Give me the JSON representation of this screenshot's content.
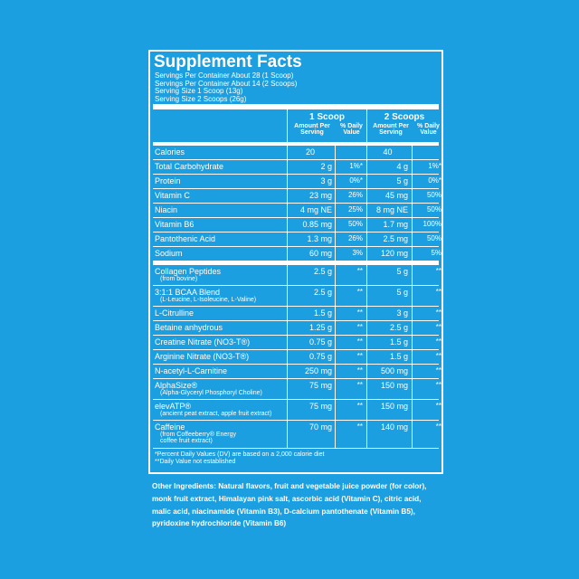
{
  "title": "Supplement Facts",
  "servings": [
    "Servings Per Container About 28 (1 Scoop)",
    "Servings Per Container About 14 (2 Scoops)",
    "Serving Size 1 Scoop (13g)",
    "Serving Size 2 Scoops (26g)"
  ],
  "header": {
    "col1": "1 Scoop",
    "col2": "2 Scoops",
    "amount": "Amount Per Serving",
    "dv": "% Daily Value"
  },
  "section1": [
    {
      "name": "Calories",
      "a1": "20",
      "d1": "",
      "a2": "40",
      "d2": ""
    },
    {
      "name": "Total Carbohydrate",
      "a1": "2 g",
      "d1": "1%*",
      "a2": "4 g",
      "d2": "1%*"
    },
    {
      "name": "Protein",
      "a1": "3 g",
      "d1": "0%*",
      "a2": "5 g",
      "d2": "0%*"
    },
    {
      "name": "Vitamin C",
      "a1": "23 mg",
      "d1": "26%",
      "a2": "45 mg",
      "d2": "50%"
    },
    {
      "name": "Niacin",
      "a1": "4 mg NE",
      "d1": "25%",
      "a2": "8 mg NE",
      "d2": "50%"
    },
    {
      "name": "Vitamin B6",
      "a1": "0.85 mg",
      "d1": "50%",
      "a2": "1.7 mg",
      "d2": "100%"
    },
    {
      "name": "Pantothenic Acid",
      "a1": "1.3 mg",
      "d1": "26%",
      "a2": "2.5 mg",
      "d2": "50%"
    },
    {
      "name": "Sodium",
      "a1": "60 mg",
      "d1": "3%",
      "a2": "120 mg",
      "d2": "5%"
    }
  ],
  "section2": [
    {
      "name": "Collagen Peptides",
      "note": "(from bovine)",
      "a1": "2.5 g",
      "d1": "**",
      "a2": "5 g",
      "d2": "**"
    },
    {
      "name": "3:1:1 BCAA Blend",
      "note": "(L-Leucine, L-Isoleucine, L-Valine)",
      "a1": "2.5 g",
      "d1": "**",
      "a2": "5 g",
      "d2": "**"
    },
    {
      "name": "L-Citrulline",
      "note": "",
      "a1": "1.5 g",
      "d1": "**",
      "a2": "3 g",
      "d2": "**"
    },
    {
      "name": "Betaine anhydrous",
      "note": "",
      "a1": "1.25 g",
      "d1": "**",
      "a2": "2.5 g",
      "d2": "**"
    },
    {
      "name": "Creatine Nitrate (NO3-T®)",
      "note": "",
      "a1": "0.75 g",
      "d1": "**",
      "a2": "1.5 g",
      "d2": "**"
    },
    {
      "name": "Arginine Nitrate (NO3-T®)",
      "note": "",
      "a1": "0.75 g",
      "d1": "**",
      "a2": "1.5 g",
      "d2": "**"
    },
    {
      "name": "N-acetyl-L-Carnitine",
      "note": "",
      "a1": "250 mg",
      "d1": "**",
      "a2": "500 mg",
      "d2": "**"
    },
    {
      "name": "AlphaSize®",
      "note": "(Alpha-Glyceryl Phosphoryl Choline)",
      "a1": "75 mg",
      "d1": "**",
      "a2": "150 mg",
      "d2": "**"
    },
    {
      "name": "elevATP®",
      "note": "(ancient peat extract, apple fruit extract)",
      "a1": "75 mg",
      "d1": "**",
      "a2": "150 mg",
      "d2": "**"
    },
    {
      "name": "Caffeine",
      "note": "(from Coffeeberry® Energy\ncoffee fruit extract)",
      "a1": "70 mg",
      "d1": "**",
      "a2": "140 mg",
      "d2": "**"
    }
  ],
  "footnotes": [
    "*Percent Daily Values (DV) are based on a 2,000 calorie diet",
    "**Daily Value not established"
  ],
  "other_ingredients": "Other Ingredients: Natural flavors, fruit and vegetable juice powder (for color), monk fruit extract, Himalayan pink salt, ascorbic acid (Vitamin C), citric acid, malic acid, niacinamide (Vitamin B3), D-calcium pantothenate (Vitamin B5), pyridoxine hydrochloride (Vitamin B6)"
}
